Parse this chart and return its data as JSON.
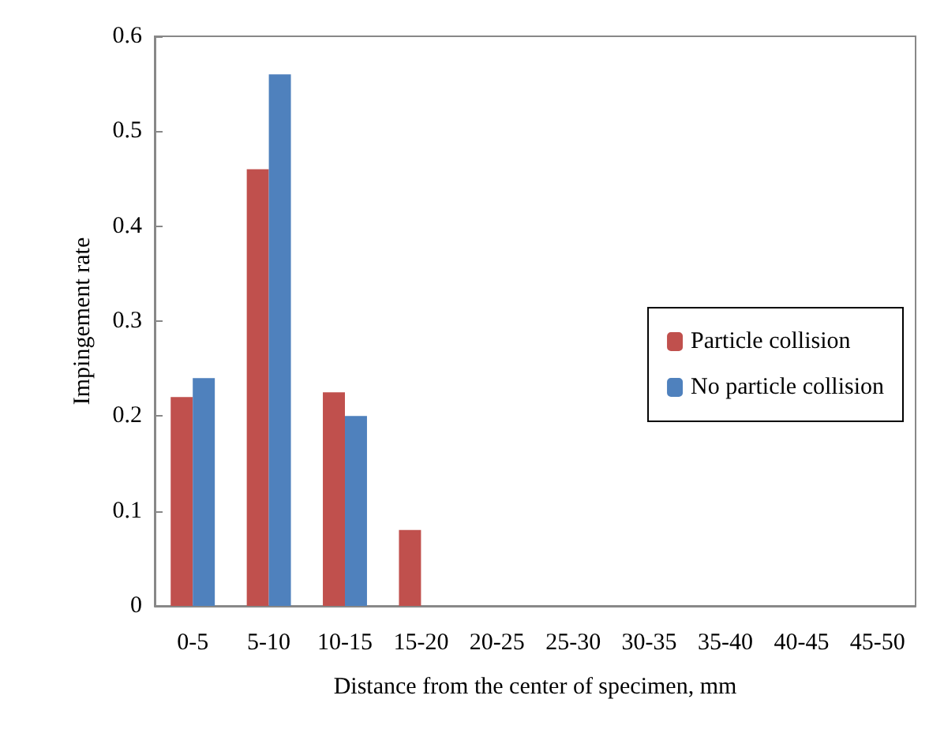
{
  "chart_data": {
    "type": "bar",
    "xlabel": "Distance from the center of specimen, mm",
    "ylabel": "Impingement rate",
    "categories": [
      "0-5",
      "5-10",
      "10-15",
      "15-20",
      "20-25",
      "25-30",
      "30-35",
      "35-40",
      "40-45",
      "45-50"
    ],
    "series": [
      {
        "name": "Particle collision",
        "color": "#c0504d",
        "values": [
          0.22,
          0.46,
          0.225,
          0.08,
          0,
          0,
          0,
          0,
          0,
          0
        ]
      },
      {
        "name": "No particle collision",
        "color": "#4f81bd",
        "values": [
          0.24,
          0.56,
          0.2,
          0,
          0,
          0,
          0,
          0,
          0,
          0
        ]
      }
    ],
    "ylim": [
      0,
      0.6
    ],
    "yticks": [
      0,
      0.1,
      0.2,
      0.3,
      0.4,
      0.5,
      0.6
    ],
    "grid": false,
    "legend": "right"
  }
}
